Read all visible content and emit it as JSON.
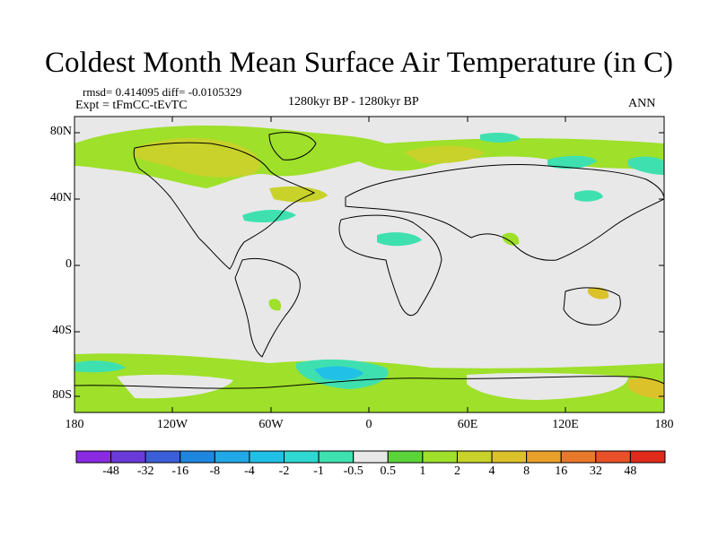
{
  "title": "Coldest Month Mean Surface Air Temperature (in C)",
  "stats": "rmsd= 0.414095 diff= -0.0105329",
  "experiment": "Expt = tFmCC-tEvTC",
  "period": "1280kyr BP - 1280kyr BP",
  "season": "ANN",
  "lat_labels": [
    "80N",
    "40N",
    "0",
    "40S",
    "80S"
  ],
  "lon_labels": [
    "180",
    "120W",
    "60W",
    "0",
    "60E",
    "120E",
    "180"
  ],
  "colorbar": {
    "labels": [
      "-48",
      "-32",
      "-16",
      "-8",
      "-4",
      "-2",
      "-1",
      "-0.5",
      "0.5",
      "1",
      "2",
      "4",
      "8",
      "16",
      "32",
      "48"
    ],
    "colors": [
      "#8a2be2",
      "#6a3bd8",
      "#3a5fd8",
      "#1f86e0",
      "#21a8e6",
      "#20c0e6",
      "#2fd8d0",
      "#3fe0b0",
      "#e8e8e8",
      "#5bd43a",
      "#9ee02a",
      "#c8d22a",
      "#dcc22a",
      "#e8a02a",
      "#e8782a",
      "#e8502a",
      "#e02a1a"
    ]
  },
  "map": {
    "background": "#e8e8e8",
    "positive_small": "#9ee02a",
    "positive_mid": "#c8d22a",
    "negative_small": "#3fe0b0",
    "negative_mid": "#21c0e6"
  }
}
